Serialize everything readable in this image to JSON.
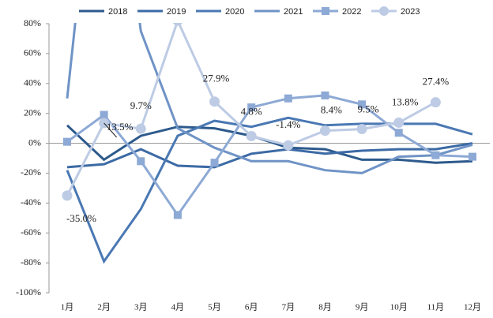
{
  "chart_data": {
    "type": "line",
    "categories": [
      "1月",
      "2月",
      "3月",
      "4月",
      "5月",
      "6月",
      "7月",
      "8月",
      "9月",
      "10月",
      "11月",
      "12月"
    ],
    "series": [
      {
        "name": "2018",
        "color": "#2d5a8c",
        "marker": "none",
        "values": [
          12,
          -11,
          5,
          11,
          10,
          5,
          -3,
          -4,
          -11,
          -11,
          -13,
          -12
        ]
      },
      {
        "name": "2019",
        "color": "#3c6aa5",
        "marker": "none",
        "values": [
          -16,
          -14,
          -4,
          -15,
          -16,
          -7,
          -4,
          -7,
          -5,
          -4,
          -4,
          0
        ]
      },
      {
        "name": "2020",
        "color": "#4a78b3",
        "marker": "none",
        "values": [
          -18,
          -79,
          -44,
          5,
          15,
          11,
          17,
          12,
          13,
          13,
          13,
          6
        ]
      },
      {
        "name": "2021",
        "color": "#6f93c6",
        "marker": "none",
        "values": [
          30,
          260,
          75,
          10,
          -3,
          -12,
          -12,
          -18,
          -20,
          -9,
          -8,
          -1
        ]
      },
      {
        "name": "2022",
        "color": "#8da9d5",
        "marker": "square",
        "values": [
          1,
          19,
          -12,
          -48,
          -13,
          24,
          30,
          32,
          26,
          7,
          -8,
          -9
        ]
      },
      {
        "name": "2023",
        "color": "#bdcbe4",
        "marker": "circle",
        "values": [
          -35.0,
          13.5,
          9.7,
          82,
          27.9,
          4.8,
          -1.4,
          8.4,
          9.5,
          13.8,
          27.4,
          null
        ],
        "value_labels": [
          "-35.0%",
          "13.5%",
          "9.7%",
          null,
          "27.9%",
          "4.8%",
          "-1.4%",
          "8.4%",
          "9.5%",
          "13.8%",
          "27.4%",
          null
        ]
      }
    ],
    "ylim": [
      -100,
      80
    ],
    "yticks": [
      {
        "value": -100,
        "label": "-100%"
      },
      {
        "value": -80,
        "label": "-80%"
      },
      {
        "value": -60,
        "label": "-60%"
      },
      {
        "value": -40,
        "label": "-40%"
      },
      {
        "value": -20,
        "label": "-20%"
      },
      {
        "value": 0,
        "label": "0%"
      },
      {
        "value": 20,
        "label": "20%"
      },
      {
        "value": 40,
        "label": "40%"
      },
      {
        "value": 60,
        "label": "60%"
      },
      {
        "value": 80,
        "label": "80%"
      }
    ],
    "legend": "top",
    "grid": false
  }
}
